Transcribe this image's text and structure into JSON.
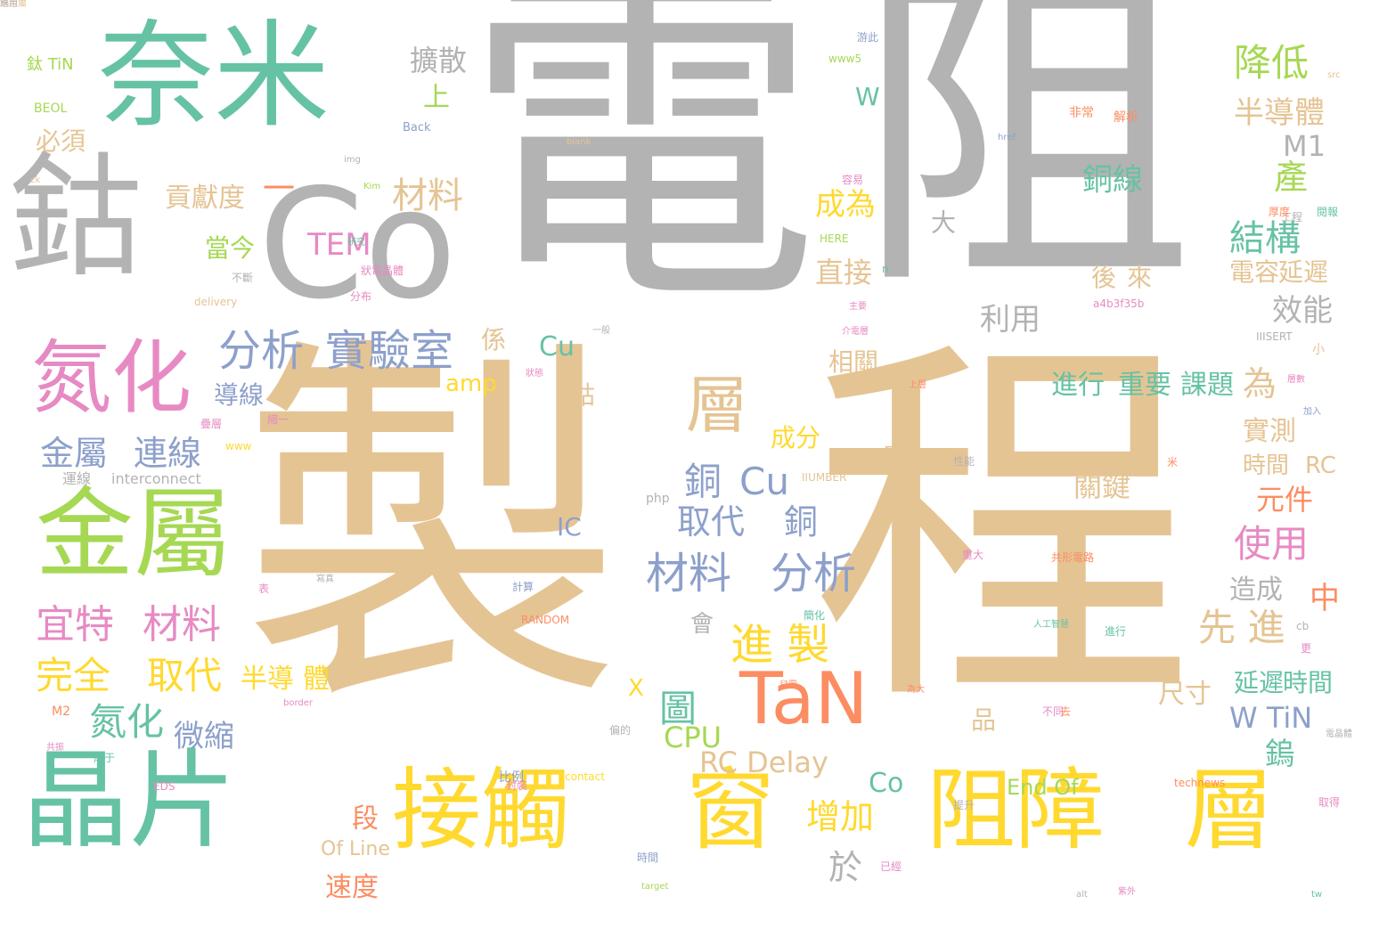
{
  "palette": {
    "gray": "#b3b3b3",
    "tan": "#e5c494",
    "yellow": "#ffd92f",
    "teal": "#66c2a5",
    "green": "#a6d854",
    "blue": "#8da0cb",
    "orange": "#fc8d62",
    "pink": "#e78ac3"
  },
  "words": [
    {
      "text": "電",
      "size": 400,
      "color": "gray"
    },
    {
      "text": "阻",
      "size": 380,
      "color": "gray"
    },
    {
      "text": "製",
      "size": 430,
      "color": "tan"
    },
    {
      "text": "程",
      "size": 430,
      "color": "tan"
    },
    {
      "text": "奈米",
      "size": 130,
      "color": "teal"
    },
    {
      "text": "Co",
      "size": 170,
      "color": "gray"
    },
    {
      "text": "鈷",
      "size": 150,
      "color": "gray"
    },
    {
      "text": "氮化",
      "size": 90,
      "color": "pink"
    },
    {
      "text": "金屬",
      "size": 110,
      "color": "green"
    },
    {
      "text": "晶片",
      "size": 120,
      "color": "teal"
    },
    {
      "text": "接觸",
      "size": 100,
      "color": "yellow"
    },
    {
      "text": "窗",
      "size": 100,
      "color": "yellow"
    },
    {
      "text": "阻障",
      "size": 100,
      "color": "yellow"
    },
    {
      "text": "層",
      "size": 100,
      "color": "yellow"
    },
    {
      "text": "TaN",
      "size": 80,
      "color": "orange"
    },
    {
      "text": "分析",
      "size": 48,
      "color": "blue"
    },
    {
      "text": "實驗室",
      "size": 48,
      "color": "blue"
    },
    {
      "text": "材料",
      "size": 48,
      "color": "blue"
    },
    {
      "text": "分析",
      "size": 48,
      "color": "blue"
    },
    {
      "text": "銅",
      "size": 42,
      "color": "blue"
    },
    {
      "text": "Cu",
      "size": 42,
      "color": "blue"
    },
    {
      "text": "取代",
      "size": 38,
      "color": "blue"
    },
    {
      "text": "銅",
      "size": 38,
      "color": "blue"
    },
    {
      "text": "進 製",
      "size": 48,
      "color": "yellow"
    },
    {
      "text": "層",
      "size": 70,
      "color": "tan"
    },
    {
      "text": "金屬",
      "size": 38,
      "color": "blue"
    },
    {
      "text": "連線",
      "size": 38,
      "color": "blue"
    },
    {
      "text": "宜特",
      "size": 44,
      "color": "pink"
    },
    {
      "text": "材料",
      "size": 44,
      "color": "pink"
    },
    {
      "text": "完全",
      "size": 42,
      "color": "yellow"
    },
    {
      "text": "取代",
      "size": 42,
      "color": "yellow"
    },
    {
      "text": "半導",
      "size": 30,
      "color": "yellow"
    },
    {
      "text": "體",
      "size": 30,
      "color": "yellow"
    },
    {
      "text": "氮化",
      "size": 42,
      "color": "teal"
    },
    {
      "text": "微縮",
      "size": 34,
      "color": "blue"
    },
    {
      "text": "圖",
      "size": 42,
      "color": "teal"
    },
    {
      "text": "CPU",
      "size": 32,
      "color": "green"
    },
    {
      "text": "RC Delay",
      "size": 32,
      "color": "tan"
    },
    {
      "text": "降低",
      "size": 42,
      "color": "green"
    },
    {
      "text": "半導體",
      "size": 34,
      "color": "tan"
    },
    {
      "text": "M1",
      "size": 32,
      "color": "gray"
    },
    {
      "text": "產",
      "size": 38,
      "color": "green"
    },
    {
      "text": "銅線",
      "size": 34,
      "color": "teal"
    },
    {
      "text": "結構",
      "size": 40,
      "color": "teal"
    },
    {
      "text": "電容",
      "size": 28,
      "color": "tan"
    },
    {
      "text": "延遲",
      "size": 28,
      "color": "tan"
    },
    {
      "text": "效能",
      "size": 34,
      "color": "gray"
    },
    {
      "text": "後",
      "size": 28,
      "color": "tan"
    },
    {
      "text": "來",
      "size": 28,
      "color": "tan"
    },
    {
      "text": "利用",
      "size": 34,
      "color": "gray"
    },
    {
      "text": "成為",
      "size": 34,
      "color": "yellow"
    },
    {
      "text": "直接",
      "size": 32,
      "color": "tan"
    },
    {
      "text": "相關",
      "size": 28,
      "color": "tan"
    },
    {
      "text": "進行",
      "size": 30,
      "color": "teal"
    },
    {
      "text": "重要",
      "size": 30,
      "color": "teal"
    },
    {
      "text": "課題",
      "size": 30,
      "color": "teal"
    },
    {
      "text": "為",
      "size": 38,
      "color": "tan"
    },
    {
      "text": "實測",
      "size": 30,
      "color": "tan"
    },
    {
      "text": "時間",
      "size": 26,
      "color": "tan"
    },
    {
      "text": "RC",
      "size": 26,
      "color": "tan"
    },
    {
      "text": "關鍵",
      "size": 32,
      "color": "tan"
    },
    {
      "text": "元件",
      "size": 32,
      "color": "orange"
    },
    {
      "text": "使用",
      "size": 42,
      "color": "pink"
    },
    {
      "text": "造成",
      "size": 30,
      "color": "gray"
    },
    {
      "text": "中",
      "size": 34,
      "color": "orange"
    },
    {
      "text": "先 進",
      "size": 42,
      "color": "tan"
    },
    {
      "text": "延遲",
      "size": 28,
      "color": "teal"
    },
    {
      "text": "時間",
      "size": 28,
      "color": "teal"
    },
    {
      "text": "W TiN",
      "size": 32,
      "color": "blue"
    },
    {
      "text": "尺寸",
      "size": 30,
      "color": "tan"
    },
    {
      "text": "鎢",
      "size": 34,
      "color": "teal"
    },
    {
      "text": "End Of",
      "size": 24,
      "color": "green"
    },
    {
      "text": "增加",
      "size": 38,
      "color": "yellow"
    },
    {
      "text": "於",
      "size": 38,
      "color": "gray"
    },
    {
      "text": "段",
      "size": 30,
      "color": "orange"
    },
    {
      "text": "速度",
      "size": 30,
      "color": "orange"
    },
    {
      "text": "Of Line",
      "size": 22,
      "color": "tan"
    },
    {
      "text": "擴散",
      "size": 32,
      "color": "gray"
    },
    {
      "text": "上",
      "size": 30,
      "color": "green"
    },
    {
      "text": "材料",
      "size": 40,
      "color": "tan"
    },
    {
      "text": "一",
      "size": 36,
      "color": "orange"
    },
    {
      "text": "貢獻度",
      "size": 30,
      "color": "tan"
    },
    {
      "text": "當今",
      "size": 28,
      "color": "green"
    },
    {
      "text": "必須",
      "size": 28,
      "color": "tan"
    },
    {
      "text": "TEM",
      "size": 34,
      "color": "pink"
    },
    {
      "text": "係",
      "size": 28,
      "color": "tan"
    },
    {
      "text": "導線",
      "size": 28,
      "color": "blue"
    },
    {
      "text": "amp",
      "size": 26,
      "color": "yellow"
    },
    {
      "text": "Cu",
      "size": 30,
      "color": "teal"
    },
    {
      "text": "鈷",
      "size": 28,
      "color": "tan"
    },
    {
      "text": "成分",
      "size": 28,
      "color": "yellow"
    },
    {
      "text": "層",
      "size": 28,
      "color": "tan"
    },
    {
      "text": "Co",
      "size": 30,
      "color": "teal"
    },
    {
      "text": "IC",
      "size": 28,
      "color": "blue"
    },
    {
      "text": "會",
      "size": 26,
      "color": "gray"
    },
    {
      "text": "X",
      "size": 26,
      "color": "yellow"
    },
    {
      "text": "品",
      "size": 28,
      "color": "tan"
    },
    {
      "text": "W",
      "size": 28,
      "color": "teal"
    },
    {
      "text": "大",
      "size": 28,
      "color": "gray"
    },
    {
      "text": "鈦 TiN",
      "size": 18,
      "color": "green"
    },
    {
      "text": "BEOL",
      "size": 14,
      "color": "green"
    },
    {
      "text": "運線",
      "size": 16,
      "color": "gray"
    },
    {
      "text": "interconnect",
      "size": 16,
      "color": "gray"
    },
    {
      "text": "Back",
      "size": 13,
      "color": "blue"
    },
    {
      "text": "img",
      "size": 10,
      "color": "gray"
    },
    {
      "text": "blank",
      "size": 10,
      "color": "tan"
    },
    {
      "text": "delivery",
      "size": 12,
      "color": "tan"
    },
    {
      "text": "HERE",
      "size": 12,
      "color": "green"
    },
    {
      "text": "IIISERT",
      "size": 12,
      "color": "gray"
    },
    {
      "text": "IIUMBER",
      "size": 12,
      "color": "tan"
    },
    {
      "text": "RANDOM",
      "size": 12,
      "color": "orange"
    },
    {
      "text": "php",
      "size": 14,
      "color": "gray"
    },
    {
      "text": "www",
      "size": 12,
      "color": "yellow"
    },
    {
      "text": "M2",
      "size": 14,
      "color": "orange"
    },
    {
      "text": "EDS",
      "size": 12,
      "color": "pink"
    },
    {
      "text": "contact",
      "size": 12,
      "color": "yellow"
    },
    {
      "text": "比例",
      "size": 14,
      "color": "blue"
    },
    {
      "text": "technews",
      "size": 12,
      "color": "orange"
    },
    {
      "text": "target",
      "size": 10,
      "color": "green"
    },
    {
      "text": "tw",
      "size": 10,
      "color": "teal"
    },
    {
      "text": "a4b3f35b",
      "size": 12,
      "color": "pink"
    },
    {
      "text": "www5",
      "size": 12,
      "color": "green"
    },
    {
      "text": "src",
      "size": 10,
      "color": "tan"
    },
    {
      "text": "href",
      "size": 10,
      "color": "blue"
    },
    {
      "text": "border",
      "size": 10,
      "color": "pink"
    },
    {
      "text": "Kim",
      "size": 10,
      "color": "green"
    },
    {
      "text": "ck",
      "size": 10,
      "color": "tan"
    },
    {
      "text": "cb",
      "size": 12,
      "color": "gray"
    },
    {
      "text": "alt",
      "size": 10,
      "color": "gray"
    },
    {
      "text": "n",
      "size": 12,
      "color": "teal"
    },
    {
      "text": "非常",
      "size": 14,
      "color": "orange"
    },
    {
      "text": "解析",
      "size": 14,
      "color": "orange"
    },
    {
      "text": "游此",
      "size": 12,
      "color": "blue"
    },
    {
      "text": "工程",
      "size": 12,
      "color": "gray"
    },
    {
      "text": "閱報",
      "size": 12,
      "color": "teal"
    },
    {
      "text": "厚度",
      "size": 12,
      "color": "orange"
    },
    {
      "text": "容易",
      "size": 12,
      "color": "pink"
    },
    {
      "text": "不斷",
      "size": 12,
      "color": "gray"
    },
    {
      "text": "分布",
      "size": 12,
      "color": "pink"
    },
    {
      "text": "研究",
      "size": 10,
      "color": "teal"
    },
    {
      "text": "狀態",
      "size": 10,
      "color": "pink"
    },
    {
      "text": "一般",
      "size": 10,
      "color": "gray"
    },
    {
      "text": "上層",
      "size": 10,
      "color": "orange"
    },
    {
      "text": "層數",
      "size": 10,
      "color": "pink"
    },
    {
      "text": "加入",
      "size": 10,
      "color": "blue"
    },
    {
      "text": "計算",
      "size": 12,
      "color": "blue"
    },
    {
      "text": "簡化",
      "size": 12,
      "color": "teal"
    },
    {
      "text": "重大",
      "size": 12,
      "color": "pink"
    },
    {
      "text": "進行",
      "size": 12,
      "color": "teal"
    },
    {
      "text": "不同",
      "size": 12,
      "color": "pink"
    },
    {
      "text": "已經",
      "size": 12,
      "color": "pink"
    },
    {
      "text": "取得",
      "size": 12,
      "color": "pink"
    },
    {
      "text": "封裝",
      "size": 12,
      "color": "pink"
    },
    {
      "text": "更",
      "size": 12,
      "color": "pink"
    },
    {
      "text": "去",
      "size": 12,
      "color": "orange"
    },
    {
      "text": "米",
      "size": 12,
      "color": "orange"
    },
    {
      "text": "表",
      "size": 12,
      "color": "pink"
    },
    {
      "text": "小",
      "size": 14,
      "color": "tan"
    },
    {
      "text": "介電層",
      "size": 10,
      "color": "pink"
    },
    {
      "text": "主要",
      "size": 10,
      "color": "pink"
    },
    {
      "text": "為大",
      "size": 10,
      "color": "orange"
    },
    {
      "text": "時間",
      "size": 12,
      "color": "blue"
    },
    {
      "text": "提升",
      "size": 12,
      "color": "gray"
    },
    {
      "text": "性能",
      "size": 12,
      "color": "gray"
    },
    {
      "text": "偏的",
      "size": 12,
      "color": "gray"
    },
    {
      "text": "共振",
      "size": 10,
      "color": "pink"
    },
    {
      "text": "厚于",
      "size": 12,
      "color": "teal"
    },
    {
      "text": "疊層",
      "size": 12,
      "color": "pink"
    },
    {
      "text": "縮一",
      "size": 12,
      "color": "pink"
    },
    {
      "text": "寫真",
      "size": 10,
      "color": "gray"
    },
    {
      "text": "兒圖",
      "size": 10,
      "color": "orange"
    },
    {
      "text": "紫外",
      "size": 10,
      "color": "pink"
    },
    {
      "text": "人工智慧",
      "size": 10,
      "color": "teal"
    },
    {
      "text": "共形電路",
      "size": 12,
      "color": "orange"
    },
    {
      "text": "狀電晶體",
      "size": 12,
      "color": "pink"
    },
    {
      "text": "電晶體",
      "size": 10,
      "color": "gray"
    },
    {
      "text": "鍋金屬",
      "size": 10,
      "color": "tan"
    },
    {
      "text": "應用",
      "size": 10,
      "color": "gray"
    }
  ]
}
